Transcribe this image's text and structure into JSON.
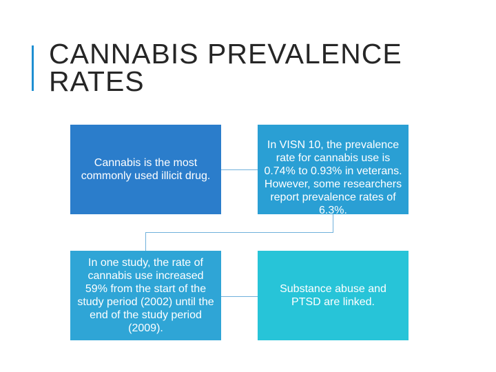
{
  "slide": {
    "title": "CANNABIS PREVALENCE RATES"
  },
  "diagram": {
    "boxes": [
      {
        "text": "Cannabis is the most commonly used illicit drug.",
        "color": "#2b7dcb"
      },
      {
        "text": "In VISN 10, the prevalence rate for cannabis use is 0.74% to 0.93% in veterans. However, some researchers report prevalence rates of 6.3%.",
        "color": "#2a9fd4"
      },
      {
        "text": "In one study, the rate of cannabis use increased 59% from the start of the study period (2002) until the end of the study period (2009).",
        "color": "#2fa5d6"
      },
      {
        "text": "Substance abuse and PTSD are linked.",
        "color": "#27c4d8"
      }
    ],
    "connector_color": "#6fb0db",
    "accent_color": "#1f8fd2"
  }
}
